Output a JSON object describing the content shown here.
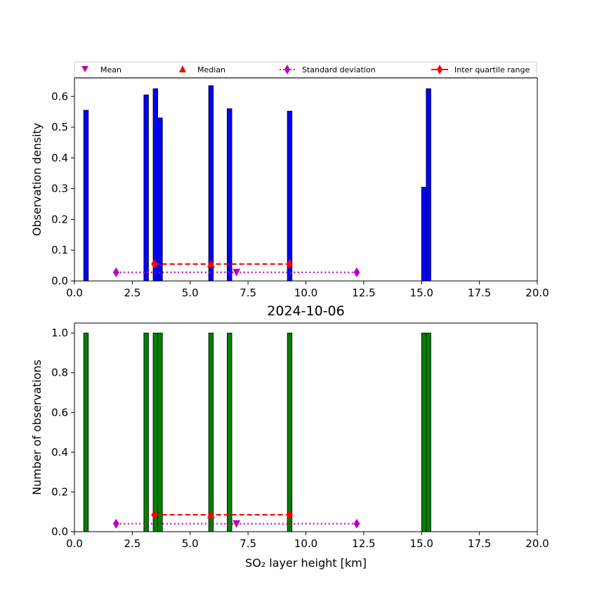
{
  "chart_data": [
    {
      "type": "bar",
      "title": "",
      "xlabel": "",
      "ylabel": "Observation density",
      "xlim": [
        0,
        20
      ],
      "ylim": [
        0,
        0.66
      ],
      "xticks": [
        "0.0",
        "2.5",
        "5.0",
        "7.5",
        "10.0",
        "12.5",
        "15.0",
        "17.5",
        "20.0"
      ],
      "yticks": [
        "0.0",
        "0.1",
        "0.2",
        "0.3",
        "0.4",
        "0.5",
        "0.6"
      ],
      "bar_color": "#0000ff",
      "bar_width": 0.2,
      "bars": [
        {
          "x": 0.5,
          "value": 0.555
        },
        {
          "x": 3.1,
          "value": 0.605
        },
        {
          "x": 3.5,
          "value": 0.625
        },
        {
          "x": 3.7,
          "value": 0.53
        },
        {
          "x": 5.9,
          "value": 0.635
        },
        {
          "x": 6.7,
          "value": 0.56
        },
        {
          "x": 9.3,
          "value": 0.552
        },
        {
          "x": 15.1,
          "value": 0.305
        },
        {
          "x": 15.3,
          "value": 0.625
        }
      ],
      "stats": {
        "mean": {
          "x": 7.0,
          "y": 0.028
        },
        "median": {
          "x": 5.9,
          "y": 0.055
        },
        "std_range": {
          "x": [
            1.8,
            12.2
          ],
          "y": 0.028
        },
        "iqr_range": {
          "x": [
            3.45,
            9.3
          ],
          "y": 0.055
        }
      },
      "legend": {
        "placement": "top",
        "entries": [
          "Mean",
          "Median",
          "Standard deviation",
          "Inter quartile range"
        ]
      }
    },
    {
      "type": "bar",
      "title": "2024-10-06",
      "xlabel": "SO₂ layer height [km]",
      "ylabel": "Number of observations",
      "xlim": [
        0,
        20
      ],
      "ylim": [
        0,
        1.05
      ],
      "xticks": [
        "0.0",
        "2.5",
        "5.0",
        "7.5",
        "10.0",
        "12.5",
        "15.0",
        "17.5",
        "20.0"
      ],
      "yticks": [
        "0.0",
        "0.2",
        "0.4",
        "0.6",
        "0.8",
        "1.0"
      ],
      "bar_color": "#008000",
      "bar_width": 0.2,
      "bars": [
        {
          "x": 0.5,
          "value": 1
        },
        {
          "x": 3.1,
          "value": 1
        },
        {
          "x": 3.5,
          "value": 1
        },
        {
          "x": 3.7,
          "value": 1
        },
        {
          "x": 5.9,
          "value": 1
        },
        {
          "x": 6.7,
          "value": 1
        },
        {
          "x": 9.3,
          "value": 1
        },
        {
          "x": 15.1,
          "value": 1
        },
        {
          "x": 15.3,
          "value": 1
        }
      ],
      "stats": {
        "mean": {
          "x": 7.0,
          "y": 0.04
        },
        "median": {
          "x": 5.9,
          "y": 0.085
        },
        "std_range": {
          "x": [
            1.8,
            12.2
          ],
          "y": 0.04
        },
        "iqr_range": {
          "x": [
            3.45,
            9.3
          ],
          "y": 0.085
        }
      }
    }
  ],
  "colors": {
    "mean": "#bf00bf",
    "median": "#ff0000",
    "std": "#bf00bf",
    "iqr": "#ff0000"
  }
}
